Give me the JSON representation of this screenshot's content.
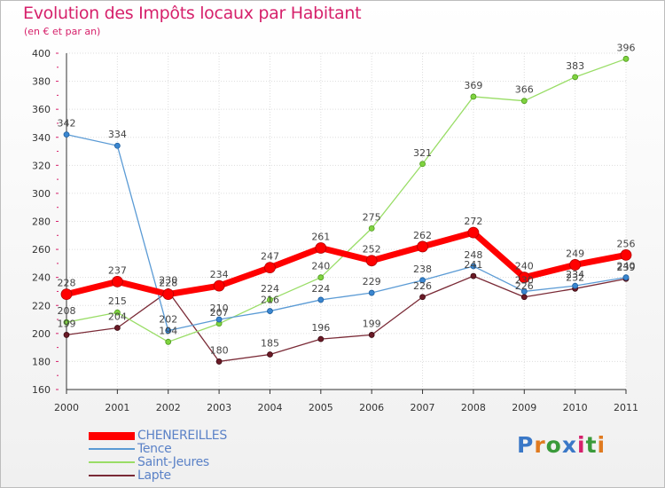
{
  "header": {
    "title": "Evolution des Impôts locaux par Habitant",
    "subtitle": "(en € et par an)"
  },
  "logo": {
    "text": "Proxiti",
    "colors": [
      "#3a78c7",
      "#e07a1f",
      "#3a9a3a",
      "#3a78c7",
      "#d6216b",
      "#3a9a3a",
      "#e07a1f"
    ]
  },
  "chart_data": {
    "type": "line",
    "x": [
      "2000",
      "2001",
      "2002",
      "2003",
      "2004",
      "2005",
      "2006",
      "2007",
      "2008",
      "2009",
      "2010",
      "2011"
    ],
    "ylim": [
      160,
      400
    ],
    "yticks": [
      "160",
      "180",
      "200",
      "220",
      "240",
      "260",
      "280",
      "300",
      "320",
      "340",
      "360",
      "380",
      "400"
    ],
    "grid": true,
    "legend_position": "bottom-left",
    "series": [
      {
        "name": "CHENEREILLES",
        "color": "#ff0000",
        "values": [
          228,
          237,
          228,
          234,
          247,
          261,
          252,
          262,
          272,
          240,
          249,
          256
        ],
        "labels": [
          "228",
          "237",
          "228",
          "234",
          "247",
          "261",
          "252",
          "262",
          "272",
          "240",
          "249",
          "256"
        ]
      },
      {
        "name": "Tence",
        "color": "#5b9bd5",
        "values": [
          342,
          334,
          202,
          210,
          216,
          224,
          229,
          238,
          248,
          230,
          234,
          240
        ],
        "labels": [
          "342",
          "334",
          "202",
          "210",
          "216",
          "224",
          "229",
          "238",
          "248",
          "230",
          "234",
          "240"
        ]
      },
      {
        "name": "Saint-Jeures",
        "color": "#99dd66",
        "values": [
          208,
          215,
          194,
          207,
          224,
          240,
          275,
          321,
          369,
          366,
          383,
          396
        ],
        "labels": [
          "208",
          "215",
          "194",
          "207",
          "224",
          "240",
          "275",
          "321",
          "369",
          "366",
          "383",
          "396"
        ]
      },
      {
        "name": "Lapte",
        "color": "#7a2a36",
        "values": [
          199,
          204,
          230,
          180,
          185,
          196,
          199,
          226,
          241,
          226,
          232,
          239
        ],
        "labels": [
          "199",
          "204",
          "230",
          "180",
          "185",
          "196",
          "199",
          "226",
          "241",
          "226",
          "232",
          "239"
        ]
      }
    ]
  }
}
